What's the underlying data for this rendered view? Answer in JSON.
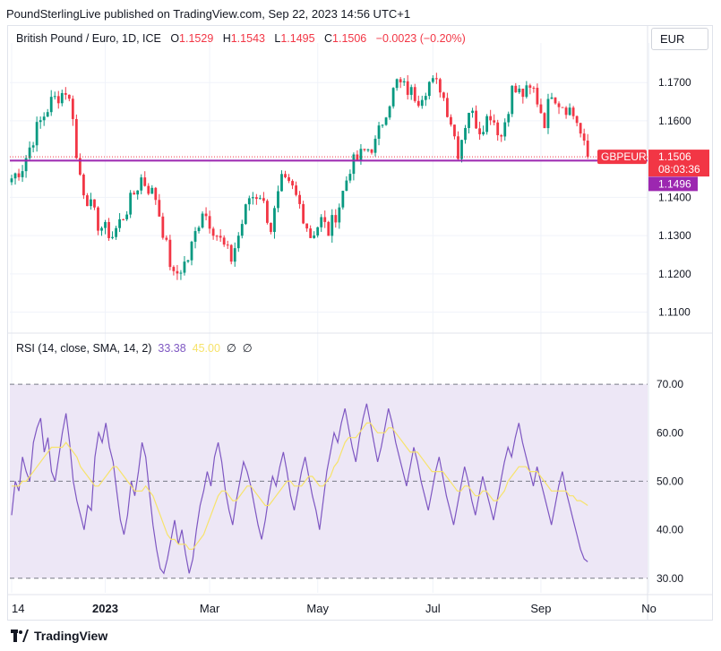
{
  "header": {
    "publisher": "PoundSterlingLive published on TradingView.com, Sep 22, 2023 14:56 UTC+1"
  },
  "legend": {
    "symbol": "British Pound / Euro, 1D, ICE",
    "o_label": "O",
    "o": "1.1529",
    "h_label": "H",
    "h": "1.1543",
    "l_label": "L",
    "l": "1.1495",
    "c_label": "C",
    "c": "1.1506",
    "change": "−0.0023 (−0.20%)"
  },
  "currency": "EUR",
  "rsi_legend": {
    "label": "RSI (14, close, SMA, 14, 2)",
    "rsi": "33.38",
    "ma": "45.00",
    "empty1": "∅",
    "empty2": "∅"
  },
  "footer": {
    "brand": "TradingView"
  },
  "colors": {
    "up": "#089981",
    "down": "#f23645",
    "hline": "#9c27b0",
    "rsi": "#7e57c2",
    "ma": "#f7e36b",
    "band": "#ede7f6"
  },
  "chart_data": [
    {
      "type": "candlestick",
      "symbol_label": "GBPEUR",
      "last_price": "1.1506",
      "countdown": "08:03:36",
      "hline_value": 1.1496,
      "hline_label": "1.1496",
      "ylim": [
        1.105,
        1.178
      ],
      "y_ticks": [
        1.11,
        1.12,
        1.13,
        1.14,
        1.15,
        1.16,
        1.17
      ],
      "y_tick_labels": [
        "1.1100",
        "1.1200",
        "1.1300",
        "1.1400",
        "1.1500",
        "1.1600",
        "1.1700"
      ],
      "x_ticks": [
        0,
        26,
        55,
        85,
        117,
        147,
        177
      ],
      "x_tick_labels": [
        "14",
        "2023",
        "Mar",
        "May",
        "Jul",
        "Sep",
        "No"
      ],
      "close_path": [
        [
          0,
          1.145
        ],
        [
          3,
          1.148
        ],
        [
          7,
          1.158
        ],
        [
          11,
          1.165
        ],
        [
          15,
          1.168
        ],
        [
          17,
          1.162
        ],
        [
          18,
          1.15
        ],
        [
          20,
          1.142
        ],
        [
          24,
          1.133
        ],
        [
          28,
          1.13
        ],
        [
          32,
          1.137
        ],
        [
          36,
          1.145
        ],
        [
          40,
          1.14
        ],
        [
          43,
          1.127
        ],
        [
          45,
          1.119
        ],
        [
          49,
          1.124
        ],
        [
          53,
          1.137
        ],
        [
          56,
          1.132
        ],
        [
          59,
          1.127
        ],
        [
          61,
          1.124
        ],
        [
          63,
          1.13
        ],
        [
          66,
          1.14
        ],
        [
          69,
          1.141
        ],
        [
          72,
          1.132
        ],
        [
          75,
          1.144
        ],
        [
          78,
          1.142
        ],
        [
          80,
          1.138
        ],
        [
          83,
          1.13
        ],
        [
          86,
          1.134
        ],
        [
          88,
          1.131
        ],
        [
          91,
          1.138
        ],
        [
          94,
          1.148
        ],
        [
          98,
          1.152
        ],
        [
          101,
          1.154
        ],
        [
          104,
          1.163
        ],
        [
          107,
          1.17
        ],
        [
          110,
          1.168
        ],
        [
          113,
          1.166
        ],
        [
          116,
          1.17
        ],
        [
          119,
          1.169
        ],
        [
          122,
          1.16
        ],
        [
          124,
          1.152
        ],
        [
          127,
          1.163
        ],
        [
          130,
          1.158
        ],
        [
          133,
          1.162
        ],
        [
          136,
          1.156
        ],
        [
          139,
          1.168
        ],
        [
          142,
          1.167
        ],
        [
          145,
          1.168
        ],
        [
          148,
          1.16
        ],
        [
          150,
          1.168
        ],
        [
          152,
          1.165
        ],
        [
          155,
          1.163
        ],
        [
          157,
          1.16
        ],
        [
          159,
          1.153
        ],
        [
          160,
          1.1506
        ]
      ]
    },
    {
      "type": "line",
      "title": "RSI (14, close, SMA, 14, 2)",
      "ylim": [
        27,
        75
      ],
      "y_ticks": [
        30,
        40,
        50,
        60,
        70
      ],
      "y_tick_labels": [
        "30.00",
        "40.00",
        "50.00",
        "60.00",
        "70.00"
      ],
      "bands": [
        30,
        50,
        70
      ],
      "series": [
        {
          "name": "RSI",
          "values": [
            43,
            50,
            48,
            55,
            52,
            50,
            58,
            61,
            63,
            56,
            59,
            52,
            50,
            55,
            60,
            64,
            58,
            50,
            46,
            43,
            40,
            45,
            44,
            55,
            60,
            58,
            62,
            57,
            54,
            48,
            42,
            39,
            43,
            50,
            47,
            52,
            58,
            55,
            48,
            41,
            36,
            32,
            31,
            34,
            38,
            42,
            37,
            40,
            35,
            31,
            34,
            40,
            45,
            48,
            52,
            49,
            55,
            58,
            54,
            48,
            44,
            41,
            46,
            50,
            54,
            52,
            49,
            45,
            41,
            38,
            42,
            47,
            51,
            49,
            53,
            56,
            52,
            47,
            44,
            48,
            52,
            55,
            51,
            47,
            44,
            40,
            46,
            52,
            56,
            60,
            58,
            62,
            65,
            61,
            57,
            54,
            59,
            63,
            66,
            62,
            58,
            54,
            57,
            61,
            65,
            62,
            58,
            55,
            52,
            49,
            53,
            57,
            54,
            50,
            47,
            44,
            48,
            52,
            55,
            51,
            47,
            44,
            41,
            45,
            49,
            53,
            50,
            46,
            43,
            47,
            51,
            48,
            45,
            42,
            46,
            50,
            54,
            57,
            55,
            59,
            62,
            58,
            55,
            52,
            49,
            53,
            50,
            47,
            44,
            41,
            45,
            49,
            52,
            48,
            45,
            42,
            39,
            36,
            34,
            33.38
          ]
        },
        {
          "name": "MA",
          "values": [
            49,
            49,
            49,
            50,
            50,
            51,
            52,
            53,
            54,
            55,
            56,
            57,
            57,
            57,
            57,
            58,
            57,
            56,
            55,
            53,
            52,
            51,
            50,
            49,
            49,
            50,
            51,
            52,
            53,
            53,
            52,
            51,
            50,
            49,
            48,
            48,
            48,
            49,
            48,
            47,
            45,
            43,
            41,
            39,
            38,
            38,
            37,
            37,
            37,
            36,
            36,
            37,
            38,
            39,
            41,
            43,
            45,
            47,
            48,
            48,
            47,
            46,
            46,
            47,
            48,
            49,
            49,
            48,
            47,
            46,
            45,
            45,
            46,
            47,
            48,
            49,
            50,
            50,
            49,
            49,
            49,
            50,
            51,
            51,
            50,
            49,
            49,
            50,
            51,
            53,
            54,
            56,
            58,
            59,
            59,
            59,
            60,
            61,
            62,
            62,
            61,
            60,
            60,
            60,
            61,
            61,
            60,
            59,
            58,
            57,
            56,
            56,
            56,
            55,
            54,
            53,
            52,
            52,
            52,
            52,
            51,
            50,
            49,
            48,
            48,
            49,
            49,
            48,
            47,
            47,
            48,
            48,
            47,
            46,
            46,
            47,
            48,
            50,
            51,
            52,
            53,
            53,
            53,
            52,
            52,
            52,
            51,
            50,
            49,
            48,
            48,
            48,
            48,
            48,
            47,
            47,
            46,
            46,
            45.5,
            45
          ]
        }
      ]
    }
  ]
}
